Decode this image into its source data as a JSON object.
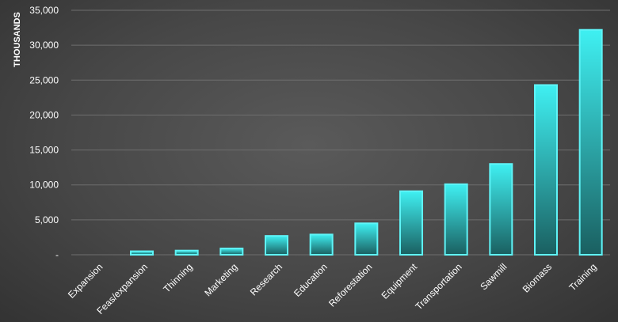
{
  "chart_data": {
    "type": "bar",
    "ylabel": "THOUSANDS",
    "ylim": [
      0,
      35000
    ],
    "yticks": [
      0,
      5000,
      10000,
      15000,
      20000,
      25000,
      30000,
      35000
    ],
    "ytick_labels": [
      "-",
      "5,000",
      "10,000",
      "15,000",
      "20,000",
      "25,000",
      "30,000",
      "35,000"
    ],
    "categories": [
      "Expansion",
      "Feas/expansion",
      "Thinning",
      "Marketing",
      "Research",
      "Education",
      "Reforestation",
      "Equipment",
      "Transportation",
      "Sawmill",
      "Biomass",
      "Training"
    ],
    "values": [
      0,
      500,
      600,
      900,
      2700,
      2900,
      4500,
      9100,
      10100,
      13000,
      24300,
      32200
    ],
    "grid": true,
    "legend": "none",
    "colors": {
      "bar_top": "#3ff0f2",
      "bar_bottom": "#1a5f60",
      "bar_edge": "#5ff4f7"
    }
  }
}
